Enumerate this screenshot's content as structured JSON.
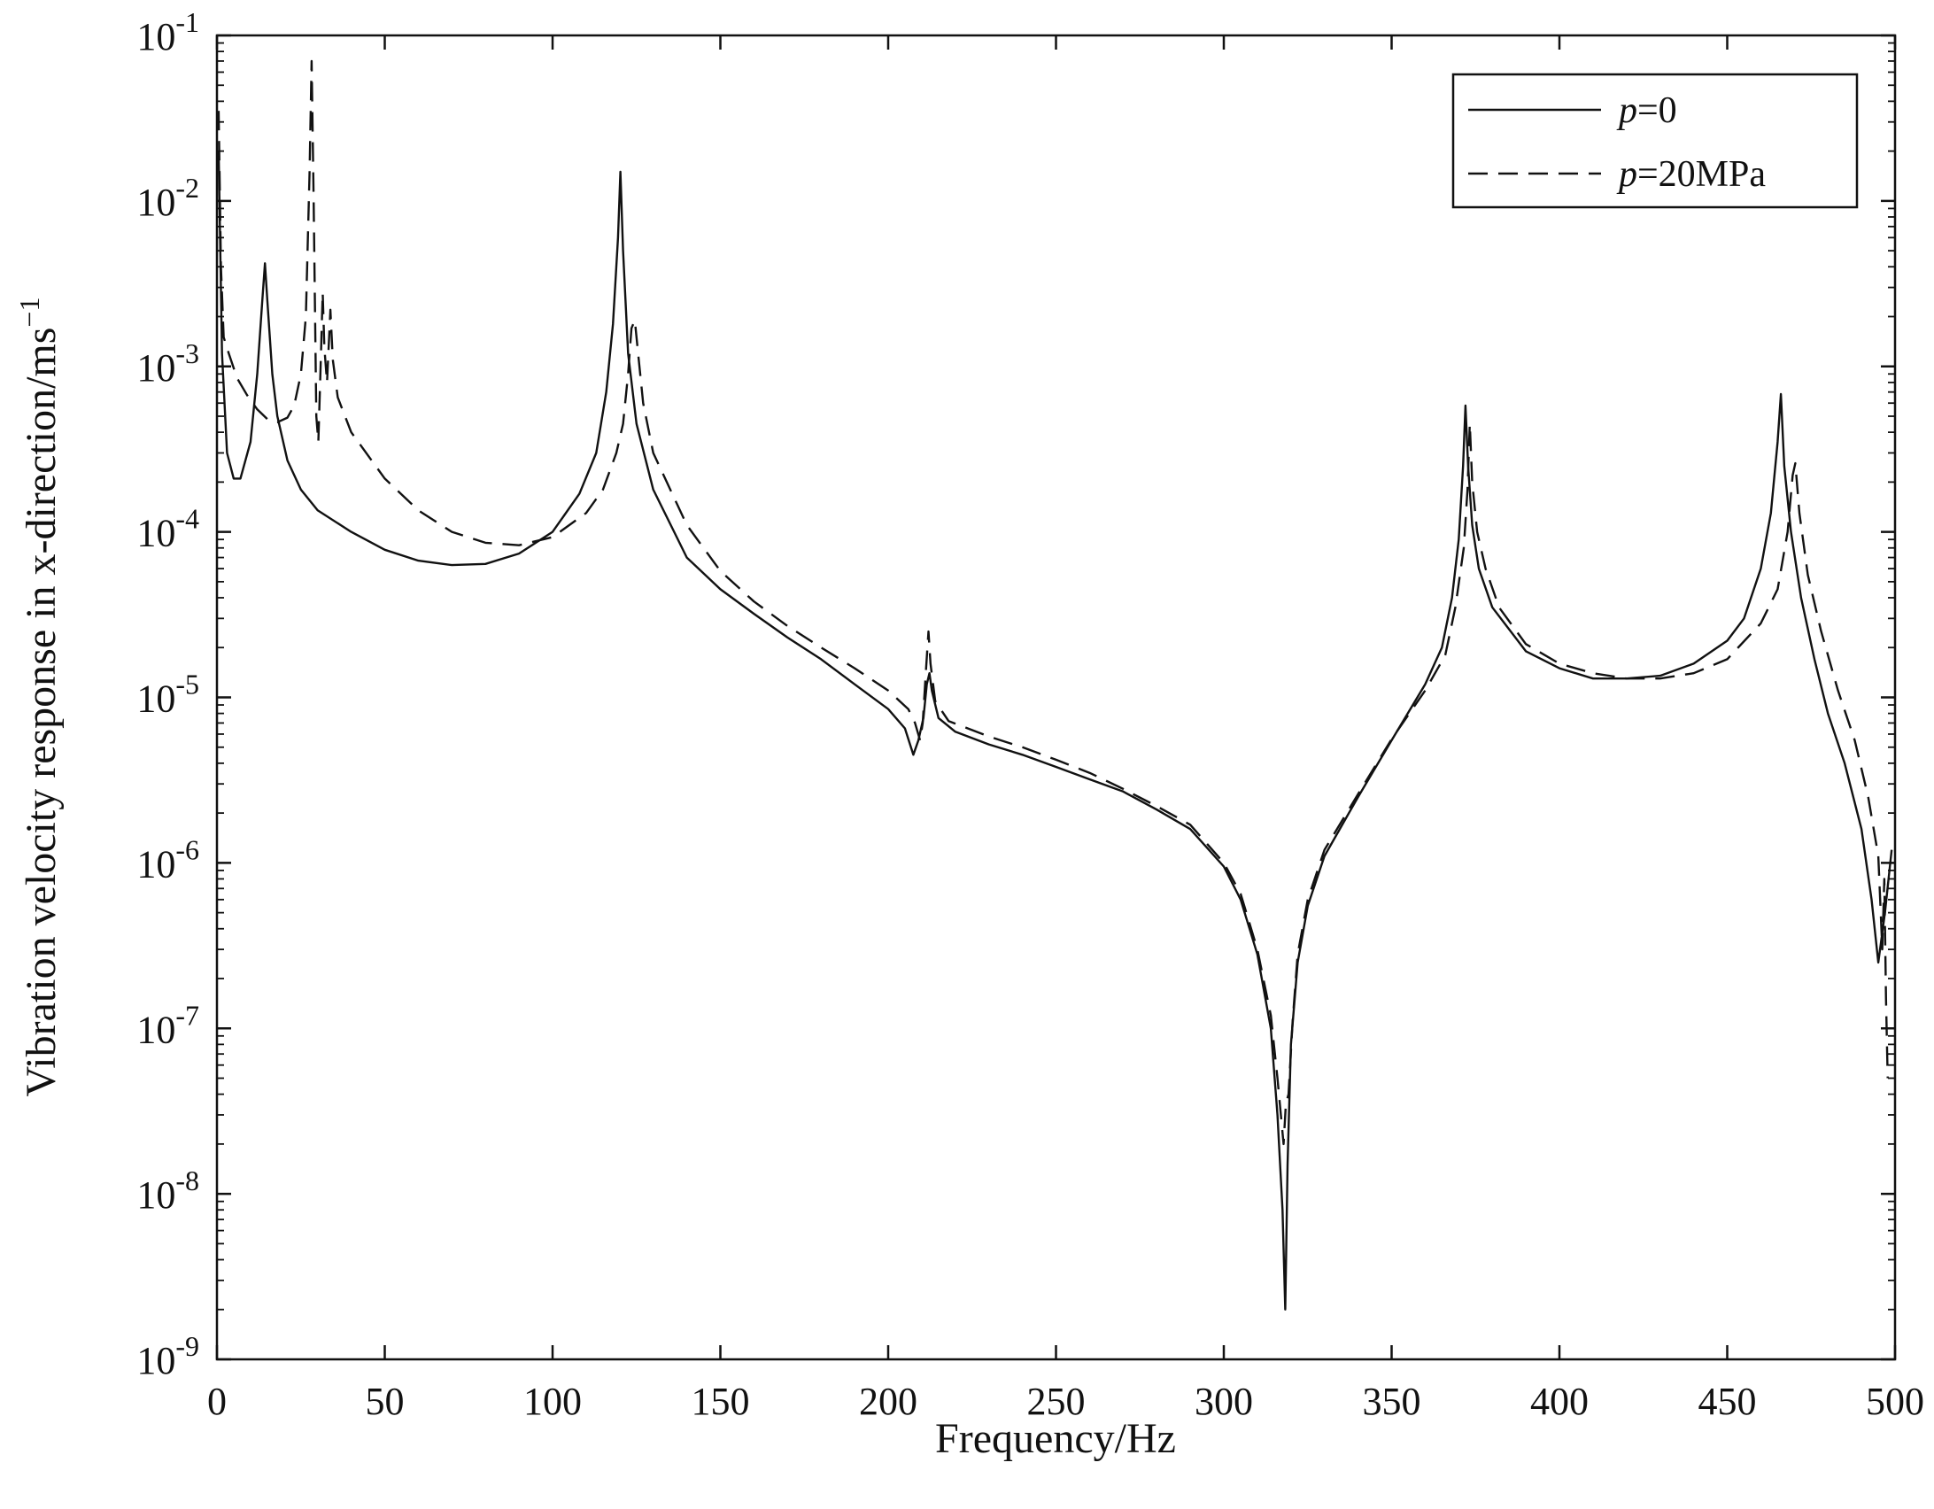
{
  "chart_data": {
    "type": "line",
    "title": "",
    "xlabel": "Frequency/Hz",
    "ylabel": "Vibration velocity response in x-direction/ms",
    "ylabel_superscript": "−1",
    "xlim": [
      0,
      500
    ],
    "ylim": [
      1e-09,
      0.1
    ],
    "yscale": "log",
    "grid": false,
    "legend_position": "top-right",
    "x_ticks": [
      "0",
      "50",
      "100",
      "150",
      "200",
      "250",
      "300",
      "350",
      "400",
      "450",
      "500"
    ],
    "y_ticks": [
      {
        "base": "10",
        "exp": "-9"
      },
      {
        "base": "10",
        "exp": "-8"
      },
      {
        "base": "10",
        "exp": "-7"
      },
      {
        "base": "10",
        "exp": "-6"
      },
      {
        "base": "10",
        "exp": "-5"
      },
      {
        "base": "10",
        "exp": "-4"
      },
      {
        "base": "10",
        "exp": "-3"
      },
      {
        "base": "10",
        "exp": "-2"
      },
      {
        "base": "10",
        "exp": "-1"
      }
    ],
    "series": [
      {
        "name_italic": "p",
        "name_rest": "=0",
        "style": "solid",
        "color": "#111111",
        "points": [
          [
            0.5,
            0.02
          ],
          [
            1.5,
            0.0012
          ],
          [
            3,
            0.0003
          ],
          [
            5,
            0.00021
          ],
          [
            7,
            0.00021
          ],
          [
            10,
            0.00035
          ],
          [
            12,
            0.0009
          ],
          [
            13.5,
            0.0025
          ],
          [
            14.3,
            0.0042
          ],
          [
            15,
            0.0025
          ],
          [
            16.5,
            0.0009
          ],
          [
            18,
            0.0005
          ],
          [
            21,
            0.00027
          ],
          [
            25,
            0.00018
          ],
          [
            30,
            0.000135
          ],
          [
            40,
            0.0001
          ],
          [
            50,
            7.8e-05
          ],
          [
            60,
            6.7e-05
          ],
          [
            70,
            6.3e-05
          ],
          [
            80,
            6.4e-05
          ],
          [
            90,
            7.4e-05
          ],
          [
            100,
            0.0001
          ],
          [
            108,
            0.00017
          ],
          [
            113,
            0.0003
          ],
          [
            116,
            0.0007
          ],
          [
            118,
            0.0018
          ],
          [
            119.5,
            0.006
          ],
          [
            120.2,
            0.015
          ],
          [
            121,
            0.005
          ],
          [
            122.5,
            0.0012
          ],
          [
            125,
            0.00045
          ],
          [
            130,
            0.00018
          ],
          [
            140,
            7e-05
          ],
          [
            150,
            4.5e-05
          ],
          [
            160,
            3.2e-05
          ],
          [
            170,
            2.3e-05
          ],
          [
            180,
            1.7e-05
          ],
          [
            190,
            1.2e-05
          ],
          [
            200,
            8.5e-06
          ],
          [
            205,
            6.5e-06
          ],
          [
            207.5,
            4.5e-06
          ],
          [
            209,
            5.5e-06
          ],
          [
            210.5,
            7.5e-06
          ],
          [
            211.5,
            1.2e-05
          ],
          [
            212.3,
            1.4e-05
          ],
          [
            213,
            1.1e-05
          ],
          [
            215,
            7.5e-06
          ],
          [
            220,
            6.2e-06
          ],
          [
            230,
            5.2e-06
          ],
          [
            240,
            4.5e-06
          ],
          [
            250,
            3.8e-06
          ],
          [
            260,
            3.2e-06
          ],
          [
            270,
            2.7e-06
          ],
          [
            280,
            2.1e-06
          ],
          [
            290,
            1.6e-06
          ],
          [
            300,
            9.5e-07
          ],
          [
            305,
            6e-07
          ],
          [
            310,
            2.8e-07
          ],
          [
            314,
            1e-07
          ],
          [
            316,
            3e-08
          ],
          [
            317.5,
            8e-09
          ],
          [
            318.3,
            2e-09
          ],
          [
            319,
            1.5e-08
          ],
          [
            320,
            8e-08
          ],
          [
            322,
            2.5e-07
          ],
          [
            325,
            5.5e-07
          ],
          [
            330,
            1.1e-06
          ],
          [
            340,
            2.5e-06
          ],
          [
            350,
            5.5e-06
          ],
          [
            360,
            1.2e-05
          ],
          [
            365,
            2e-05
          ],
          [
            368,
            4e-05
          ],
          [
            370,
            9e-05
          ],
          [
            371.3,
            0.00025
          ],
          [
            372,
            0.00058
          ],
          [
            372.8,
            0.00025
          ],
          [
            374,
            0.00011
          ],
          [
            376,
            6e-05
          ],
          [
            380,
            3.5e-05
          ],
          [
            390,
            1.9e-05
          ],
          [
            400,
            1.5e-05
          ],
          [
            410,
            1.3e-05
          ],
          [
            420,
            1.3e-05
          ],
          [
            430,
            1.35e-05
          ],
          [
            440,
            1.6e-05
          ],
          [
            450,
            2.2e-05
          ],
          [
            455,
            3e-05
          ],
          [
            460,
            6e-05
          ],
          [
            463,
            0.00013
          ],
          [
            465,
            0.00035
          ],
          [
            466,
            0.00068
          ],
          [
            467,
            0.00025
          ],
          [
            469,
            0.0001
          ],
          [
            472,
            4e-05
          ],
          [
            476,
            1.7e-05
          ],
          [
            480,
            8e-06
          ],
          [
            485,
            4e-06
          ],
          [
            490,
            1.6e-06
          ],
          [
            493,
            6e-07
          ],
          [
            495,
            2.5e-07
          ],
          [
            497,
            5e-07
          ],
          [
            499,
            1.2e-06
          ]
        ]
      },
      {
        "name_italic": "p",
        "name_rest": "=20MPa",
        "style": "dashed",
        "color": "#111111",
        "points": [
          [
            0.5,
            0.035
          ],
          [
            1.2,
            0.004
          ],
          [
            2,
            0.0015
          ],
          [
            3.5,
            0.0012
          ],
          [
            6,
            0.00085
          ],
          [
            9,
            0.00067
          ],
          [
            12,
            0.00055
          ],
          [
            15,
            0.00048
          ],
          [
            18,
            0.00046
          ],
          [
            21,
            0.00049
          ],
          [
            23,
            0.00058
          ],
          [
            25,
            0.0009
          ],
          [
            26.5,
            0.002
          ],
          [
            27.6,
            0.015
          ],
          [
            28.2,
            0.07
          ],
          [
            28.8,
            0.01
          ],
          [
            29.6,
            0.0005
          ],
          [
            30.2,
            0.00035
          ],
          [
            31,
            0.0012
          ],
          [
            31.5,
            0.0028
          ],
          [
            32,
            0.0013
          ],
          [
            32.8,
            0.0008
          ],
          [
            33.8,
            0.0022
          ],
          [
            34.5,
            0.0011
          ],
          [
            36,
            0.00065
          ],
          [
            40,
            0.0004
          ],
          [
            50,
            0.00021
          ],
          [
            60,
            0.000135
          ],
          [
            70,
            0.0001
          ],
          [
            80,
            8.6e-05
          ],
          [
            90,
            8.3e-05
          ],
          [
            100,
            9.3e-05
          ],
          [
            110,
            0.00013
          ],
          [
            115,
            0.00018
          ],
          [
            119,
            0.0003
          ],
          [
            121,
            0.00045
          ],
          [
            122.5,
            0.0009
          ],
          [
            123.5,
            0.0017
          ],
          [
            124.5,
            0.0019
          ],
          [
            125.5,
            0.0012
          ],
          [
            127,
            0.0006
          ],
          [
            130,
            0.0003
          ],
          [
            140,
            0.00011
          ],
          [
            150,
            5.8e-05
          ],
          [
            160,
            3.8e-05
          ],
          [
            170,
            2.7e-05
          ],
          [
            180,
            2e-05
          ],
          [
            190,
            1.5e-05
          ],
          [
            200,
            1.1e-05
          ],
          [
            206,
            8.5e-06
          ],
          [
            208,
            7e-06
          ],
          [
            209.5,
            5.5e-06
          ],
          [
            210.3,
            7e-06
          ],
          [
            211.3,
            1.5e-05
          ],
          [
            212,
            2.5e-05
          ],
          [
            212.6,
            1.6e-05
          ],
          [
            214,
            9.5e-06
          ],
          [
            218,
            7.2e-06
          ],
          [
            230,
            5.8e-06
          ],
          [
            240,
            5e-06
          ],
          [
            250,
            4.2e-06
          ],
          [
            260,
            3.5e-06
          ],
          [
            270,
            2.8e-06
          ],
          [
            280,
            2.2e-06
          ],
          [
            290,
            1.7e-06
          ],
          [
            300,
            1e-06
          ],
          [
            305,
            6.5e-07
          ],
          [
            310,
            3e-07
          ],
          [
            314,
            1.2e-07
          ],
          [
            316,
            5e-08
          ],
          [
            317.8,
            2e-08
          ],
          [
            318.5,
            3.5e-08
          ],
          [
            319.3,
            4e-08
          ],
          [
            320.5,
            1.1e-07
          ],
          [
            322,
            2.8e-07
          ],
          [
            325,
            6e-07
          ],
          [
            330,
            1.2e-06
          ],
          [
            340,
            2.6e-06
          ],
          [
            350,
            5.6e-06
          ],
          [
            360,
            1.1e-05
          ],
          [
            366,
            1.8e-05
          ],
          [
            369,
            3.5e-05
          ],
          [
            371.5,
            8e-05
          ],
          [
            372.6,
            0.00018
          ],
          [
            373.3,
            0.00045
          ],
          [
            374,
            0.0002
          ],
          [
            375.5,
            0.0001
          ],
          [
            378,
            6e-05
          ],
          [
            382,
            3.5e-05
          ],
          [
            390,
            2.1e-05
          ],
          [
            400,
            1.6e-05
          ],
          [
            410,
            1.4e-05
          ],
          [
            420,
            1.3e-05
          ],
          [
            430,
            1.3e-05
          ],
          [
            440,
            1.4e-05
          ],
          [
            450,
            1.7e-05
          ],
          [
            460,
            2.8e-05
          ],
          [
            465,
            4.5e-05
          ],
          [
            468,
            0.0001
          ],
          [
            469.5,
            0.00022
          ],
          [
            470.3,
            0.00026
          ],
          [
            471.5,
            0.00013
          ],
          [
            474,
            5.5e-05
          ],
          [
            478,
            2.5e-05
          ],
          [
            483,
            1.1e-05
          ],
          [
            488,
            5.5e-06
          ],
          [
            492,
            2.5e-06
          ],
          [
            495,
            1.1e-06
          ],
          [
            496.2,
            3e-07
          ],
          [
            496.8,
            8e-07
          ],
          [
            497.3,
            1.5e-07
          ],
          [
            497.8,
            5e-08
          ]
        ]
      }
    ]
  }
}
